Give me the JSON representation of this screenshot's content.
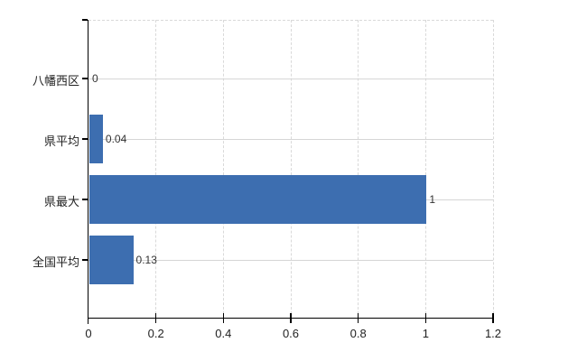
{
  "chart_data": {
    "type": "bar",
    "orientation": "horizontal",
    "title": "",
    "xlabel": "",
    "ylabel": "",
    "categories": [
      "八幡西区",
      "県平均",
      "県最大",
      "全国平均"
    ],
    "values": [
      0,
      0.04,
      1,
      0.13
    ],
    "value_labels": [
      "0",
      "0.04",
      "1",
      "0.13"
    ],
    "xlim": [
      0,
      1.2
    ],
    "x_ticks": [
      0,
      0.2,
      0.4,
      0.6,
      0.8,
      1,
      1.2
    ],
    "x_tick_labels": [
      "0",
      "0.2",
      "0.4",
      "0.6",
      "0.8",
      "1",
      "1.2"
    ],
    "grid": true,
    "legend": false,
    "colors": {
      "bar": "#3d6eb0",
      "axis": "#000000",
      "grid_dashed": "#d9d9d9",
      "grid_solid": "#d6d6d6",
      "text": "#222222",
      "value_text": "#333333",
      "background": "#ffffff"
    }
  }
}
